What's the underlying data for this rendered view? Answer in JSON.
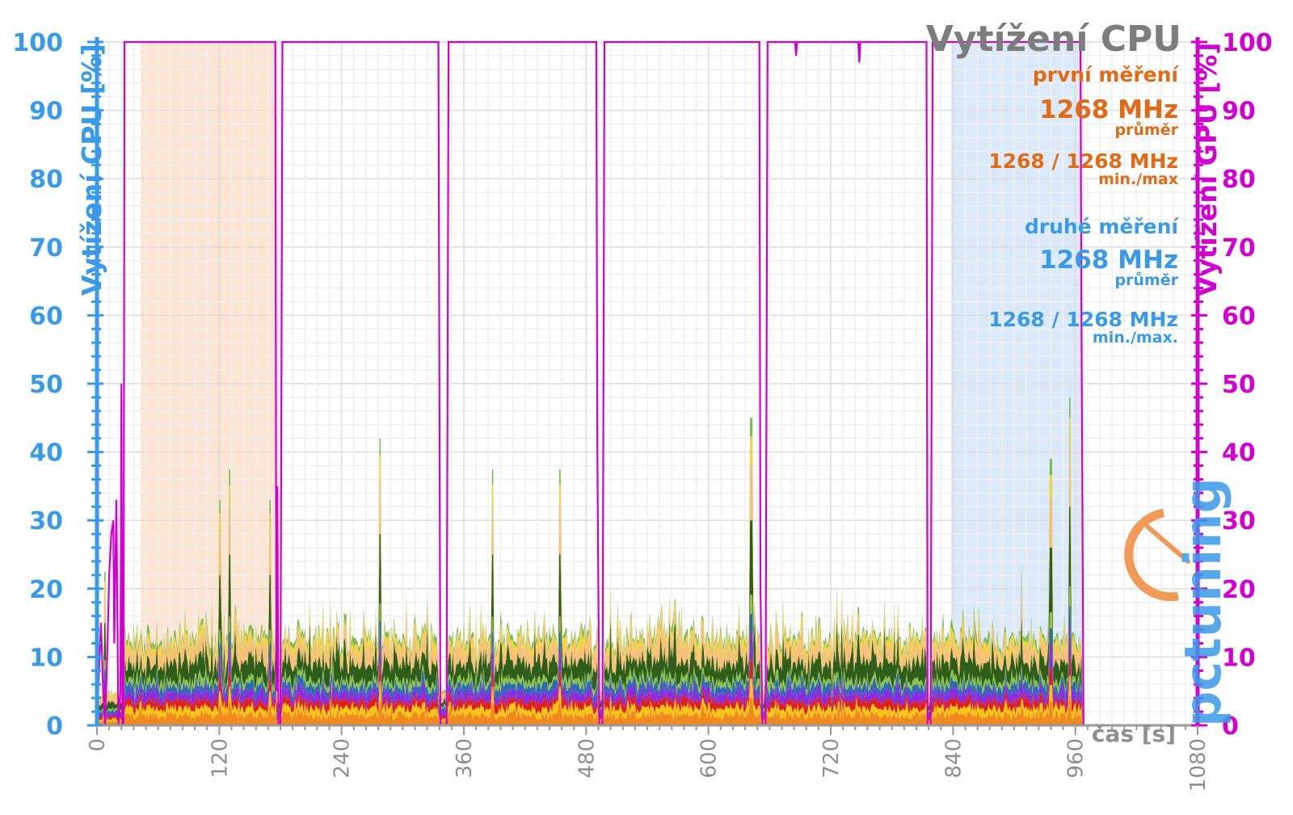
{
  "chart_data": {
    "type": "area",
    "title": "Vytížení CPU",
    "xlabel": "čas [s]",
    "ylabel_left": "Vytížení CPU [%]",
    "ylabel_right": "Vytížení GPU [%]",
    "xlim": [
      0,
      1080
    ],
    "ylim": [
      0,
      100
    ],
    "x_ticks": [
      0,
      120,
      240,
      360,
      480,
      600,
      720,
      840,
      960,
      1080
    ],
    "y_ticks": [
      0,
      10,
      20,
      30,
      40,
      50,
      60,
      70,
      80,
      90,
      100
    ],
    "grid": true,
    "annotations": {
      "first": {
        "label": "první měření",
        "avg": "1268 MHz",
        "avg_caption": "průměr",
        "minmax": "1268 / 1268 MHz",
        "minmax_caption": "min./max"
      },
      "second": {
        "label": "druhé měření",
        "avg": "1268 MHz",
        "avg_caption": "průměr",
        "minmax": "1268 / 1268 MHz",
        "minmax_caption": "min./max."
      }
    },
    "highlighted_ranges": [
      {
        "measurement": "první měření",
        "x": [
          43,
          178
        ],
        "color": "#fbdcc3"
      },
      {
        "measurement": "druhé měření",
        "x": [
          838,
          968
        ],
        "color": "#cfe3f8"
      }
    ],
    "series": [
      {
        "name": "",
        "axis": "right",
        "color": "#d100d1",
        "points": [
          [
            0,
            0
          ],
          [
            2,
            8
          ],
          [
            4,
            15
          ],
          [
            6,
            5
          ],
          [
            8,
            0
          ],
          [
            10,
            10
          ],
          [
            12,
            22
          ],
          [
            14,
            28
          ],
          [
            16,
            30
          ],
          [
            17,
            12
          ],
          [
            19,
            33
          ],
          [
            21,
            0
          ],
          [
            23,
            5
          ],
          [
            24,
            50
          ],
          [
            25,
            0
          ],
          [
            26,
            0
          ],
          [
            27,
            100
          ],
          [
            175,
            100
          ],
          [
            176,
            5
          ],
          [
            177,
            35
          ],
          [
            178,
            0
          ],
          [
            180,
            0
          ],
          [
            182,
            100
          ],
          [
            335,
            100
          ],
          [
            337,
            0
          ],
          [
            343,
            0
          ],
          [
            345,
            100
          ],
          [
            490,
            100
          ],
          [
            491,
            40
          ],
          [
            493,
            0
          ],
          [
            496,
            0
          ],
          [
            498,
            100
          ],
          [
            650,
            100
          ],
          [
            651,
            20
          ],
          [
            653,
            0
          ],
          [
            656,
            0
          ],
          [
            658,
            100
          ],
          [
            685,
            100
          ],
          [
            686,
            98
          ],
          [
            687,
            100
          ],
          [
            747,
            100
          ],
          [
            748,
            97
          ],
          [
            749,
            100
          ],
          [
            814,
            100
          ],
          [
            815,
            0
          ],
          [
            818,
            0
          ],
          [
            820,
            100
          ],
          [
            965,
            100
          ],
          [
            966,
            60
          ],
          [
            968,
            0
          ],
          [
            975,
            0
          ]
        ]
      },
      {
        "name": "",
        "axis": "left",
        "color": "#f08a1e",
        "approx_mean": 1.5,
        "approx_max": 3
      },
      {
        "name": "",
        "axis": "left",
        "color": "#f5c518",
        "approx_mean": 1.0,
        "approx_max": 2
      },
      {
        "name": "",
        "axis": "left",
        "color": "#e0201a",
        "approx_mean": 1.0,
        "approx_max": 2
      },
      {
        "name": "",
        "axis": "left",
        "color": "#8a2be2",
        "approx_mean": 1.2,
        "approx_max": 3
      },
      {
        "name": "",
        "axis": "left",
        "color": "#2b6cb0",
        "approx_mean": 1.0,
        "approx_max": 2
      },
      {
        "name": "",
        "axis": "left",
        "color": "#8bc34a",
        "approx_mean": 0.8,
        "approx_max": 2
      },
      {
        "name": "",
        "axis": "left",
        "color": "#2e5e1a",
        "approx_mean": 2.5,
        "approx_max": 8
      },
      {
        "name": "",
        "axis": "left",
        "color": "#f4c07a",
        "approx_mean": 2.0,
        "approx_max": 6
      },
      {
        "name": "",
        "axis": "left",
        "color": "#f5d442",
        "approx_mean": 1.0,
        "approx_max": 3
      },
      {
        "name": "",
        "axis": "left",
        "color": "#7dbb55",
        "approx_mean": 0.6,
        "approx_max": 2
      }
    ],
    "total_cpu_peaks": [
      [
        8,
        15
      ],
      [
        121,
        22
      ],
      [
        130,
        25
      ],
      [
        170,
        22
      ],
      [
        278,
        28
      ],
      [
        388,
        25
      ],
      [
        454,
        25
      ],
      [
        642,
        30
      ],
      [
        936,
        26
      ],
      [
        955,
        32
      ]
    ]
  },
  "watermark": "pctuning"
}
